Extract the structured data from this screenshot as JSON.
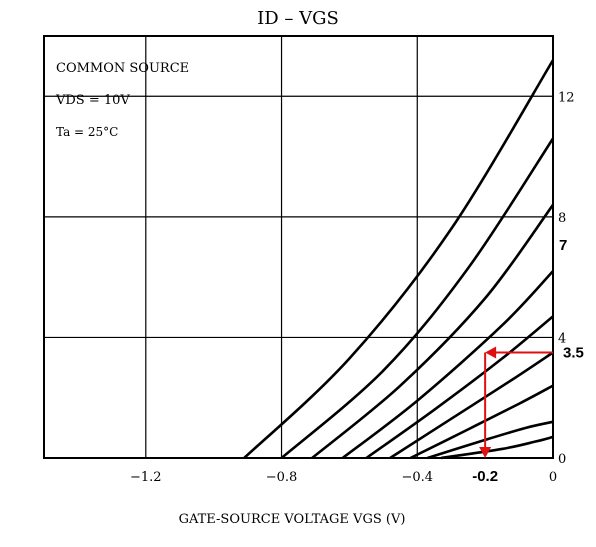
{
  "chart_data": {
    "type": "line",
    "title": "ID  –  VGS",
    "xlabel": "GATE-SOURCE VOLTAGE   VGS   (V)",
    "ylabel": "",
    "xlim": [
      -1.5,
      0
    ],
    "ylim": [
      0,
      14
    ],
    "x_ticks": [
      {
        "value": -1.2,
        "label": "−1.2"
      },
      {
        "value": -0.8,
        "label": "−0.8"
      },
      {
        "value": -0.4,
        "label": "−0.4"
      },
      {
        "value": 0,
        "label": "0"
      }
    ],
    "y_ticks": [
      {
        "value": 0,
        "label": "0"
      },
      {
        "value": 4,
        "label": "4"
      },
      {
        "value": 8,
        "label": "8"
      },
      {
        "value": 12,
        "label": "12"
      }
    ],
    "grid": true,
    "conditions": [
      "COMMON SOURCE",
      "VDS = 10V",
      "Ta = 25°C"
    ],
    "series": [
      {
        "points": [
          [
            -0.91,
            0
          ],
          [
            -0.6,
            3.3
          ],
          [
            -0.3,
            7.6
          ],
          [
            0,
            13.2
          ]
        ]
      },
      {
        "points": [
          [
            -0.8,
            0
          ],
          [
            -0.5,
            2.9
          ],
          [
            -0.25,
            6.3
          ],
          [
            0,
            10.6
          ]
        ]
      },
      {
        "points": [
          [
            -0.71,
            0
          ],
          [
            -0.45,
            2.4
          ],
          [
            -0.2,
            5.3
          ],
          [
            0,
            8.4
          ]
        ]
      },
      {
        "points": [
          [
            -0.62,
            0
          ],
          [
            -0.4,
            1.9
          ],
          [
            -0.15,
            4.4
          ],
          [
            0,
            6.2
          ]
        ]
      },
      {
        "points": [
          [
            -0.55,
            0
          ],
          [
            -0.35,
            1.6
          ],
          [
            -0.15,
            3.3
          ],
          [
            0,
            4.7
          ]
        ]
      },
      {
        "points": [
          [
            -0.48,
            0
          ],
          [
            -0.3,
            1.3
          ],
          [
            -0.12,
            2.6
          ],
          [
            0,
            3.5
          ]
        ]
      },
      {
        "points": [
          [
            -0.42,
            0
          ],
          [
            -0.25,
            0.95
          ],
          [
            -0.1,
            1.8
          ],
          [
            0,
            2.4
          ]
        ]
      },
      {
        "points": [
          [
            -0.37,
            0
          ],
          [
            -0.2,
            0.6
          ],
          [
            -0.08,
            1.0
          ],
          [
            0,
            1.2
          ]
        ]
      },
      {
        "points": [
          [
            -0.33,
            0
          ],
          [
            -0.15,
            0.3
          ],
          [
            -0.05,
            0.55
          ],
          [
            0,
            0.7
          ]
        ]
      }
    ],
    "annotations": {
      "color": "#dd1111",
      "y_label": "7",
      "x_value": -0.2,
      "x_label": "-0.2",
      "y_value": 3.5,
      "y_value_label": "3.5"
    }
  }
}
